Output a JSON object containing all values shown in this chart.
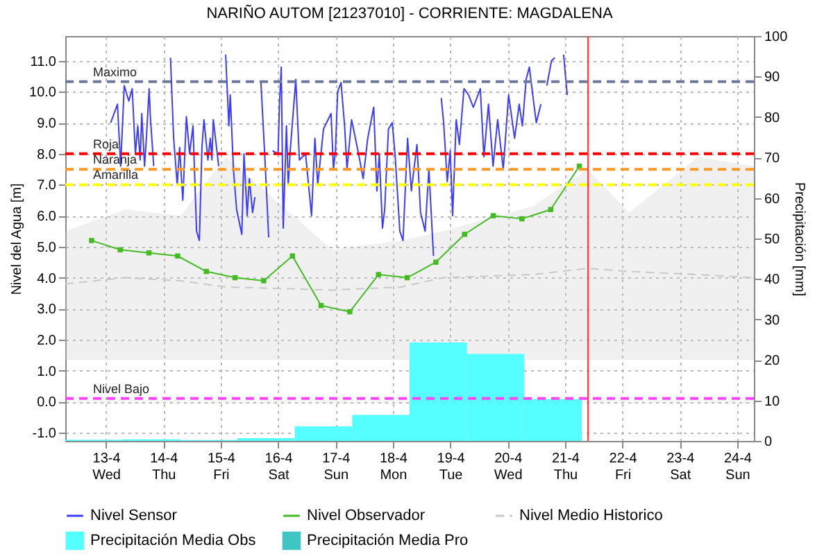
{
  "chart_data": {
    "type": "line",
    "title": "NARIÑO AUTOM   [21237010] - CORRIENTE: MAGDALENA",
    "ylabel": "Nivel del Agua [m]",
    "y2label": "Precipitación [mm]",
    "xlim": [
      "--04-12T07:00",
      "--04-24T07:00"
    ],
    "xticks": [
      {
        "value": "--04-13T00:00",
        "label": "13-4\nWed"
      },
      {
        "value": "--04-14T00:00",
        "label": "14-4\nThu"
      },
      {
        "value": "--04-15T00:00",
        "label": "15-4\nFri"
      },
      {
        "value": "--04-16T00:00",
        "label": "16-4\nSat"
      },
      {
        "value": "--04-17T00:00",
        "label": "17-4\nSun"
      },
      {
        "value": "--04-18T00:00",
        "label": "18-4\nMon"
      },
      {
        "value": "--04-19T00:00",
        "label": "19-4\nTue"
      },
      {
        "value": "--04-20T00:00",
        "label": "20-4\nWed"
      },
      {
        "value": "--04-21T00:00",
        "label": "21-4\nThu"
      },
      {
        "value": "--04-22T00:00",
        "label": "22-4\nFri"
      },
      {
        "value": "--04-23T00:00",
        "label": "23-4\nSat"
      },
      {
        "value": "--04-24T00:00",
        "label": "24-4\nSun"
      }
    ],
    "ylim": [
      -1.27,
      11.8
    ],
    "yticks": [
      {
        "value": -1,
        "label": "-1.0"
      },
      {
        "value": 0,
        "label": "0.0"
      },
      {
        "value": 1,
        "label": "1.0"
      },
      {
        "value": 2,
        "label": "2.0"
      },
      {
        "value": 3,
        "label": "3.0"
      },
      {
        "value": 4,
        "label": "4.0"
      },
      {
        "value": 5,
        "label": "5.0"
      },
      {
        "value": 6,
        "label": "6.0"
      },
      {
        "value": 7,
        "label": "7.0"
      },
      {
        "value": 8,
        "label": "8.0"
      },
      {
        "value": 9,
        "label": "9.0"
      },
      {
        "value": 10,
        "label": "10.0"
      },
      {
        "value": 11,
        "label": "11.0"
      }
    ],
    "y2lim": [
      0,
      100
    ],
    "y2ticks": [
      0,
      10,
      20,
      30,
      40,
      50,
      60,
      70,
      80,
      90,
      100
    ],
    "grid": true,
    "legend": "bottom",
    "series": [
      {
        "name": "Nivel Sensor",
        "color": "#3c3cff",
        "x": [
          "--04-13T02:00",
          "--04-13T04:50",
          "--04-13T06:10",
          "--04-13T07:40",
          "--04-13T09:35",
          "--04-13T11:00",
          "--04-13T12:20",
          "--04-13T13:20",
          "--04-13T14:20",
          "--04-13T15:00",
          "--04-13T16:10",
          "--04-13T16:55",
          "--04-13T18:05",
          "--04-13T18:35",
          "--04-13T20:00",
          "--04-13T23:00",
          "--04-14T03:00",
          "--04-14T04:20",
          "--04-14T05:50",
          "--04-14T06:50",
          "--04-14T08:10",
          "--04-14T09:40",
          "--04-14T11:00",
          "--04-14T12:25",
          "--04-14T13:55",
          "--04-14T15:05",
          "--04-14T16:10",
          "--04-14T17:00",
          "--04-14T18:40",
          "--04-14T19:40",
          "--04-14T20:20",
          "--04-14T20:55",
          "--04-14T23:10",
          "--04-15T00:30",
          "--04-15T02:05",
          "--04-15T03:25",
          "--04-15T04:00",
          "--04-15T05:20",
          "--04-15T06:40",
          "--04-15T08:50",
          "--04-15T09:45",
          "--04-15T11:05",
          "--04-15T12:00",
          "--04-15T13:20",
          "--04-15T14:20",
          "--04-15T15:30",
          "--04-15T16:50",
          "--04-15T18:20",
          "--04-15T20:05",
          "--04-15T20:50",
          "--04-15T21:40",
          "--04-16T00:00",
          "--04-16T00:35",
          "--04-16T01:20",
          "--04-16T02:10",
          "--04-16T03:30",
          "--04-16T04:15",
          "--04-16T05:05",
          "--04-16T07:25",
          "--04-16T08:55",
          "--04-16T11:30",
          "--04-16T14:00",
          "--04-16T15:25",
          "--04-16T16:35",
          "--04-16T19:00",
          "--04-16T22:10",
          "--04-16T23:10",
          "--04-17T00:00",
          "--04-17T00:55",
          "--04-17T02:20",
          "--04-17T03:50",
          "--04-17T04:50",
          "--04-17T06:45",
          "--04-17T09:40",
          "--04-17T11:35",
          "--04-17T13:30",
          "--04-17T16:00",
          "--04-17T17:20",
          "--04-17T18:20",
          "--04-17T19:40",
          "--04-17T20:35",
          "--04-17T22:10",
          "--04-17T23:45",
          "--04-18T01:00",
          "--04-18T02:55",
          "--04-18T04:15",
          "--04-18T06:10",
          "--04-18T07:45",
          "--04-18T10:05",
          "--04-18T11:35",
          "--04-18T13:30",
          "--04-18T15:05",
          "--04-18T17:00",
          "--04-18T18:30",
          "--04-18T20:15",
          "--04-18T21:15",
          "--04-18T22:45",
          "--04-19T00:00",
          "--04-19T01:00",
          "--04-19T02:30",
          "--04-19T03:50",
          "--04-19T05:45",
          "--04-19T07:40",
          "--04-19T09:40",
          "--04-19T12:35",
          "--04-19T14:05",
          "--04-19T16:00",
          "--04-19T17:55",
          "--04-19T19:50",
          "--04-19T22:10",
          "--04-20T00:25",
          "--04-20T02:55",
          "--04-20T04:50",
          "--04-20T06:10",
          "--04-20T07:45",
          "--04-20T09:05",
          "--04-20T10:40",
          "--04-20T12:00",
          "--04-20T13:55",
          "--04-20T15:10",
          "--04-20T16:25",
          "--04-20T18:20",
          "--04-20T19:45",
          "--04-20T21:30",
          "--04-20T23:25",
          "--04-21T00:55"
        ],
        "values": [
          9.0,
          9.6,
          7.6,
          10.2,
          9.7,
          10.1,
          8.0,
          8.9,
          7.8,
          9.3,
          7.6,
          8.5,
          10.1,
          9.2,
          7.6,
          null,
          11.1,
          8.5,
          7.0,
          8.2,
          6.5,
          9.2,
          8.0,
          8.9,
          5.5,
          5.2,
          8.2,
          9.1,
          7.8,
          8.5,
          7.8,
          9.1,
          7.6,
          null,
          11.2,
          8.9,
          9.9,
          7.5,
          6.2,
          5.4,
          8.0,
          6.0,
          7.2,
          6.1,
          6.6,
          null,
          10.3,
          8.1,
          5.3,
          null,
          8.1,
          8.0,
          9.6,
          10.8,
          5.6,
          8.9,
          7.0,
          8.1,
          10.4,
          7.8,
          8.0,
          6.0,
          8.5,
          7.0,
          8.8,
          9.3,
          7.5,
          8.1,
          10.0,
          10.3,
          8.9,
          7.5,
          9.1,
          8.0,
          7.2,
          8.5,
          9.5,
          6.8,
          8.0,
          5.6,
          6.2,
          8.8,
          9.0,
          7.9,
          5.5,
          5.2,
          8.5,
          6.8,
          8.3,
          6.1,
          5.5,
          7.5,
          4.7,
          null,
          9.8,
          9.0,
          7.1,
          8.1,
          6.0,
          9.1,
          8.3,
          10.1,
          9.9,
          9.5,
          10.1,
          7.9,
          9.6,
          7.6,
          9.1,
          7.5,
          9.9,
          8.5,
          9.6,
          8.9,
          10.4,
          10.8,
          9.8,
          9.0,
          9.6,
          null,
          10.2,
          11.0,
          11.1,
          null,
          11.2,
          9.9
        ]
      },
      {
        "name": "Nivel Observador",
        "color": "#44bb22",
        "marker": "square",
        "x": [
          "--04-12T18:00",
          "--04-13T06:00",
          "--04-13T18:00",
          "--04-14T06:00",
          "--04-14T18:00",
          "--04-15T06:00",
          "--04-15T18:00",
          "--04-16T06:00",
          "--04-16T18:00",
          "--04-17T06:00",
          "--04-17T18:00",
          "--04-18T06:00",
          "--04-18T18:00",
          "--04-19T06:00",
          "--04-19T18:00",
          "--04-20T06:00",
          "--04-20T18:00",
          "--04-21T06:00"
        ],
        "values": [
          5.2,
          4.9,
          4.8,
          4.7,
          4.2,
          4.0,
          3.9,
          4.7,
          3.1,
          2.9,
          4.1,
          4.0,
          4.5,
          5.4,
          6.0,
          5.9,
          6.2,
          7.6
        ]
      },
      {
        "name": "Nivel Medio Historico",
        "color": "#c8c8c8",
        "line_style": "dashed",
        "x": [
          "--04-12T07:00",
          "--04-13T08:05",
          "--04-14T07:10",
          "--04-15T02:10",
          "--04-16T22:40",
          "--04-18T03:30",
          "--04-18T20:55",
          "--04-20T10:25",
          "--04-21T09:30",
          "--04-22T02:50",
          "--04-23T07:40",
          "--04-24T07:00"
        ],
        "values": [
          3.8,
          4.0,
          3.9,
          3.7,
          3.6,
          3.7,
          4.0,
          4.1,
          4.3,
          4.2,
          4.1,
          4.0
        ],
        "lower": [
          1.35,
          1.35,
          1.35,
          1.35,
          1.35,
          1.35,
          1.35,
          1.35,
          1.35,
          1.35,
          1.35,
          1.35
        ],
        "upper": [
          5.5,
          6.2,
          6.0,
          7.9,
          4.9,
          5.2,
          5.5,
          6.3,
          7.5,
          6.1,
          7.9,
          7.6
        ]
      },
      {
        "name": "Precipitación Media Obs",
        "type": "bar",
        "axis": "y2",
        "color": "#55ffff",
        "x": [
          "--04-12T07:00",
          "--04-13T07:00",
          "--04-14T07:00",
          "--04-15T07:00",
          "--04-16T07:00",
          "--04-17T07:00",
          "--04-18T07:00",
          "--04-19T07:00",
          "--04-20T07:00"
        ],
        "values": [
          0.3,
          0.4,
          0.2,
          0.7,
          3.6,
          6.4,
          24.3,
          21.5,
          10.3
        ]
      },
      {
        "name": "Precipitación Media Pro",
        "type": "bar",
        "axis": "y2",
        "color": "#40c4c4"
      }
    ],
    "ref_lines": [
      {
        "axis": "y",
        "value": 10.33,
        "label": "Maximo",
        "color": "#6d7a9c",
        "line_style": "dashed"
      },
      {
        "axis": "y",
        "value": 8.0,
        "label": "Roja",
        "color": "#ff0000",
        "line_style": "dashed"
      },
      {
        "axis": "y",
        "value": 7.5,
        "label": "Naranja",
        "color": "#ff9922",
        "line_style": "dashed"
      },
      {
        "axis": "y",
        "value": 7.0,
        "label": "Amarilla",
        "color": "#ffff00",
        "line_style": "dashed"
      },
      {
        "axis": "y",
        "value": 0.1,
        "label": "Nivel Bajo",
        "color": "#ff44ff",
        "line_style": "dashed"
      },
      {
        "axis": "x",
        "value": "--04-21T09:40",
        "label": null,
        "color": "#ff4444",
        "line_style": "solid"
      }
    ]
  }
}
